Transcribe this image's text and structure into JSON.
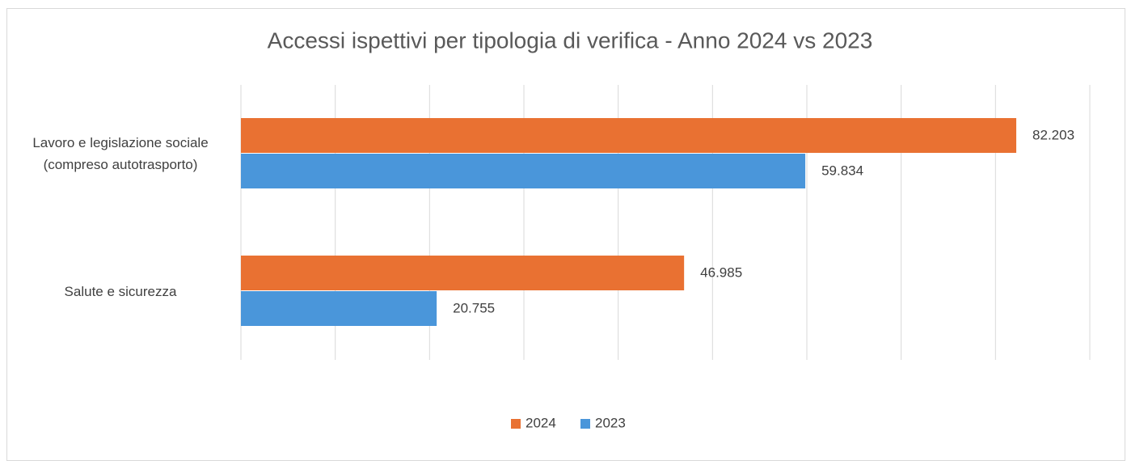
{
  "chart_data": {
    "type": "hbar",
    "title": "Accessi ispettivi per tipologia di verifica - Anno 2024 vs 2023",
    "categories": [
      "Lavoro e legislazione sociale (compreso autotrasporto)",
      "Salute e sicurezza"
    ],
    "series": [
      {
        "name": "2024",
        "color": "#e97132",
        "values": [
          82203,
          46985
        ],
        "value_labels": [
          "82.203",
          "46.985"
        ]
      },
      {
        "name": "2023",
        "color": "#4a96da",
        "values": [
          59834,
          20755
        ],
        "value_labels": [
          "59.834",
          "20.755"
        ]
      }
    ],
    "xlim": [
      0,
      90000
    ],
    "xticks": [
      0,
      10000,
      20000,
      30000,
      40000,
      50000,
      60000,
      70000,
      80000,
      90000
    ],
    "grid": true,
    "legend": "bottom"
  }
}
